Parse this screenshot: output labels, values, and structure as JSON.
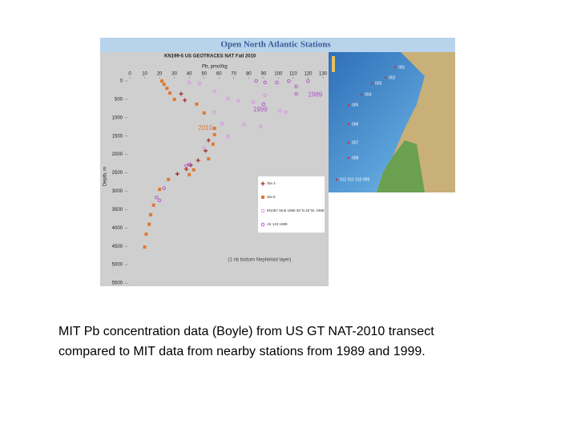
{
  "chart_data": {
    "type": "scatter",
    "header": "Open North Atlantic Stations",
    "title": "KN199-5 US GEOTRACES NAT Fall 2010",
    "x_label": "Pb, pmol/kg",
    "y_label": "Depth, m",
    "xlim": [
      0,
      130
    ],
    "xticks": [
      0,
      10,
      20,
      30,
      40,
      50,
      60,
      70,
      80,
      90,
      100,
      110,
      120,
      130
    ],
    "ylim": [
      0,
      5500
    ],
    "yticks": [
      0,
      500,
      1000,
      1500,
      2000,
      2500,
      3000,
      3500,
      4000,
      4500,
      5000,
      5500
    ],
    "inverted_y": true,
    "series": [
      {
        "name": "Sta 3",
        "color": "#a0302a",
        "marker": "cross",
        "x": [
          34.5,
          37,
          53,
          51,
          46,
          41,
          38,
          32
        ],
        "values": [
          350,
          524,
          1615,
          1900,
          2160,
          2290,
          2400,
          2530
        ]
      },
      {
        "name": "Sta 5",
        "color": "#e07830",
        "marker": "square",
        "x": [
          21.6,
          23,
          25,
          27,
          30,
          45,
          50,
          57,
          57,
          56,
          53,
          43,
          40,
          26,
          20,
          16,
          14,
          13,
          11,
          10
        ],
        "values": [
          0,
          90,
          200,
          330,
          500,
          630,
          870,
          1290,
          1460,
          1720,
          2120,
          2420,
          2550,
          2680,
          2950,
          3380,
          3640,
          3900,
          4170,
          4520
        ]
      },
      {
        "name": "EN367 Stu6 1999 35°N 25°W, 1999",
        "color": "#d58ce0",
        "marker": "circle",
        "x": [
          40,
          47,
          57,
          66,
          73,
          83,
          91,
          101,
          105,
          88,
          77,
          66,
          62,
          50,
          57
        ],
        "values": [
          40,
          65,
          280,
          480,
          545,
          570,
          390,
          810,
          850,
          1240,
          1180,
          1510,
          1160,
          1830,
          850
        ]
      },
      {
        "name": "AII 123 1989",
        "color": "#b050c8",
        "marker": "circle",
        "x": [
          85,
          91,
          99,
          107,
          112,
          120,
          112,
          90,
          40,
          38,
          23,
          20,
          18
        ],
        "values": [
          0,
          40,
          40,
          0,
          150,
          0,
          350,
          630,
          2270,
          2310,
          2920,
          3250,
          3170
        ]
      }
    ],
    "annotations": [
      {
        "text": "1989",
        "color": "#b050c8",
        "x": 120,
        "y": 380
      },
      {
        "text": "1999",
        "color": "#b050c8",
        "x": 83,
        "y": 780
      },
      {
        "text": "2010",
        "color": "#e07830",
        "x": 46,
        "y": 1290
      },
      {
        "text": "(1 nb bottom Nepheloid layer)",
        "color": "#444444",
        "x": 66,
        "y": 4860
      }
    ],
    "legend": "lower right"
  },
  "map": {
    "stations": [
      "001",
      "002",
      "003",
      "004",
      "005",
      "006",
      "007",
      "008",
      "012 011 010 009"
    ]
  },
  "caption": {
    "lines": [
      "MIT Pb concentration data (Boyle) from US GT NAT-2010 transect",
      "compared to MIT data from nearby stations from 1989 and 1999."
    ]
  }
}
